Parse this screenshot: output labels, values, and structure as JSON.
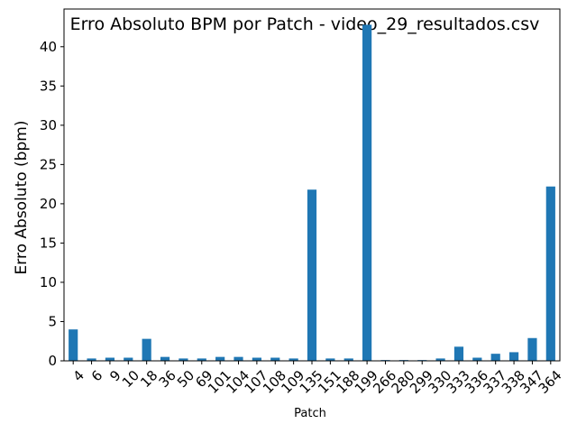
{
  "chart_data": {
    "type": "bar",
    "title": "Erro Absoluto BPM por Patch - video_29_resultados.csv",
    "xlabel": "Patch",
    "ylabel": "Erro Absoluto (bpm)",
    "ylim": [
      0,
      44.8
    ],
    "yticks": [
      0,
      5,
      10,
      15,
      20,
      25,
      30,
      35,
      40
    ],
    "grid": false,
    "bar_color": "#1f77b4",
    "categories": [
      "4",
      "6",
      "9",
      "10",
      "18",
      "36",
      "50",
      "69",
      "101",
      "104",
      "107",
      "108",
      "109",
      "135",
      "151",
      "188",
      "199",
      "266",
      "280",
      "299",
      "330",
      "333",
      "336",
      "337",
      "338",
      "347",
      "364"
    ],
    "values": [
      4.0,
      0.3,
      0.4,
      0.4,
      2.8,
      0.5,
      0.3,
      0.3,
      0.5,
      0.5,
      0.4,
      0.4,
      0.3,
      21.8,
      0.3,
      0.3,
      42.8,
      0.1,
      0.1,
      0.1,
      0.3,
      1.8,
      0.4,
      0.9,
      1.1,
      2.9,
      22.2
    ]
  }
}
